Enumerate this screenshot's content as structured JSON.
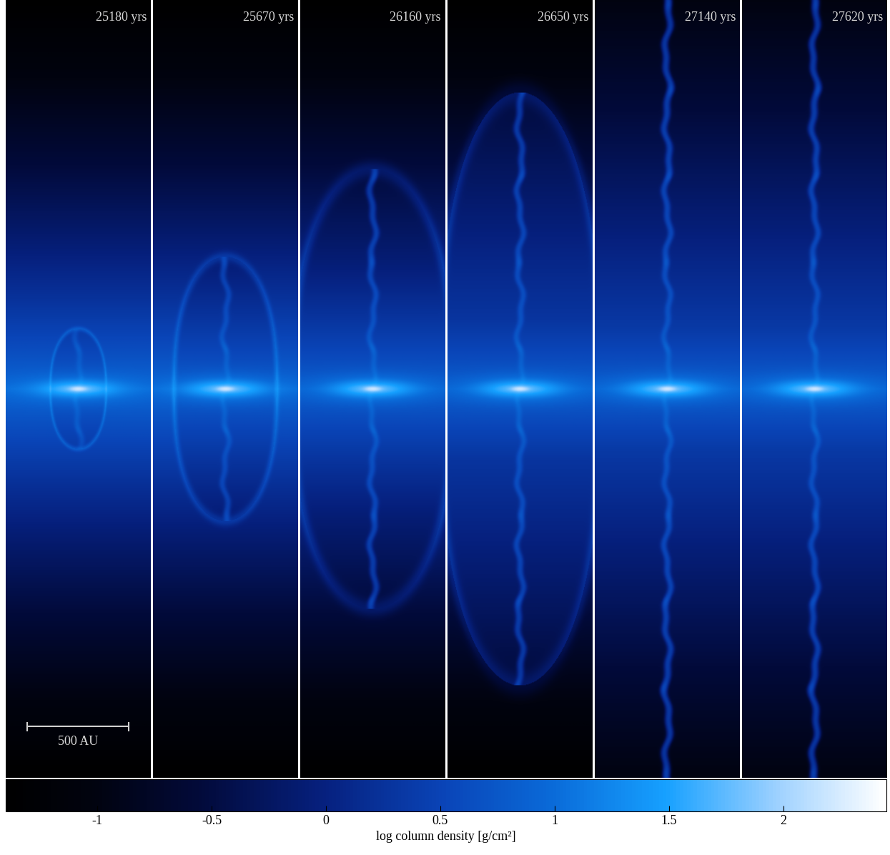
{
  "chart_data": {
    "type": "image",
    "panels": [
      {
        "time": "25180 yrs",
        "lobe_height_au": 294
      },
      {
        "time": "25670 yrs",
        "lobe_height_au": 647
      },
      {
        "time": "26160 yrs",
        "lobe_height_au": 1074
      },
      {
        "time": "26650 yrs",
        "lobe_height_au": 1450
      },
      {
        "time": "27140 yrs",
        "lobe_height_au": null
      },
      {
        "time": "27620 yrs",
        "lobe_height_au": null
      }
    ],
    "x_range_au": [
      -358,
      358
    ],
    "z_range_au": [
      -1900,
      1900
    ],
    "scale_bar": {
      "label": "500 AU",
      "length_au": 500
    },
    "colorbar": {
      "label": "log column density [g/cm²]",
      "range": [
        -1.4,
        2.45
      ],
      "ticks": [
        -1,
        -0.5,
        0,
        0.5,
        1,
        1.5,
        2
      ]
    }
  }
}
